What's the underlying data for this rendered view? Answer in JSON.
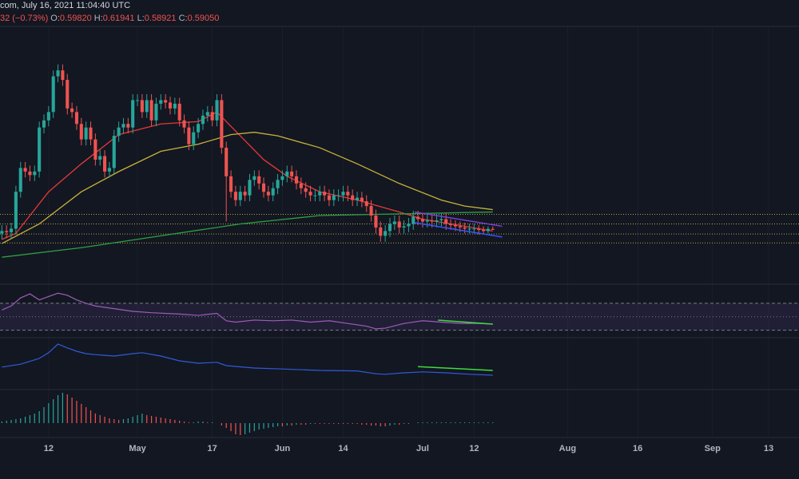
{
  "chart_data": {
    "type": "candlestick",
    "header": {
      "line1": "com, July 16, 2021 11:04:40 UTC",
      "change": "32 (−0.73%)",
      "o_label": "O:",
      "o": "0.59820",
      "h_label": "H:",
      "h": "0.61941",
      "l_label": "L:",
      "l": "0.58921",
      "c_label": "C:",
      "c": "0.59050"
    },
    "up_color": "#26a69a",
    "down_color": "#ef5350",
    "xlim": [
      -0.4,
      170.5
    ],
    "xticks": [
      {
        "value": 10,
        "label": "12"
      },
      {
        "value": 29,
        "label": "May"
      },
      {
        "value": 45,
        "label": "17"
      },
      {
        "value": 60,
        "label": "Jun"
      },
      {
        "value": 73,
        "label": "14"
      },
      {
        "value": 90,
        "label": "Jul"
      },
      {
        "value": 101,
        "label": "12"
      },
      {
        "value": 121,
        "label": "Aug"
      },
      {
        "value": 136,
        "label": "16"
      },
      {
        "value": 152,
        "label": "Sep"
      },
      {
        "value": 164,
        "label": "13"
      }
    ],
    "ylim": [
      0.14,
      2.3
    ],
    "x": [
      0,
      1,
      2,
      3,
      4,
      5,
      6,
      7,
      8,
      9,
      10,
      11,
      12,
      13,
      14,
      15,
      16,
      17,
      18,
      19,
      20,
      21,
      22,
      23,
      24,
      25,
      26,
      27,
      28,
      29,
      30,
      31,
      32,
      33,
      34,
      35,
      36,
      37,
      38,
      39,
      40,
      41,
      42,
      43,
      44,
      45,
      46,
      47,
      48,
      49,
      50,
      51,
      52,
      53,
      54,
      55,
      56,
      57,
      58,
      59,
      60,
      61,
      62,
      63,
      64,
      65,
      66,
      67,
      68,
      69,
      70,
      71,
      72,
      73,
      74,
      75,
      76,
      77,
      78,
      79,
      80,
      81,
      82,
      83,
      84,
      85,
      86,
      87,
      88,
      89,
      90,
      91,
      92,
      93,
      94,
      95,
      96,
      97,
      98,
      99,
      100,
      101,
      102,
      103,
      104,
      105
    ],
    "candles": [
      [
        0.56,
        0.63,
        0.51,
        0.58
      ],
      [
        0.58,
        0.63,
        0.52,
        0.57
      ],
      [
        0.57,
        0.65,
        0.52,
        0.6
      ],
      [
        0.6,
        0.96,
        0.55,
        0.91
      ],
      [
        0.91,
        1.16,
        0.86,
        1.11
      ],
      [
        1.11,
        1.16,
        1.03,
        1.08
      ],
      [
        1.08,
        1.13,
        1.0,
        1.05
      ],
      [
        1.05,
        1.13,
        1.0,
        1.08
      ],
      [
        1.08,
        1.5,
        1.03,
        1.45
      ],
      [
        1.45,
        1.56,
        1.4,
        1.51
      ],
      [
        1.51,
        1.63,
        1.46,
        1.58
      ],
      [
        1.58,
        1.93,
        1.53,
        1.88
      ],
      [
        1.88,
        1.98,
        1.83,
        1.93
      ],
      [
        1.93,
        1.98,
        1.8,
        1.85
      ],
      [
        1.85,
        1.9,
        1.56,
        1.61
      ],
      [
        1.61,
        1.66,
        1.53,
        1.58
      ],
      [
        1.58,
        1.63,
        1.43,
        1.48
      ],
      [
        1.48,
        1.53,
        1.3,
        1.35
      ],
      [
        1.35,
        1.5,
        1.3,
        1.45
      ],
      [
        1.45,
        1.5,
        1.3,
        1.35
      ],
      [
        1.35,
        1.4,
        1.13,
        1.18
      ],
      [
        1.18,
        1.26,
        1.13,
        1.21
      ],
      [
        1.21,
        1.26,
        1.03,
        1.08
      ],
      [
        1.08,
        1.16,
        1.03,
        1.11
      ],
      [
        1.11,
        1.43,
        1.06,
        1.38
      ],
      [
        1.38,
        1.5,
        1.33,
        1.45
      ],
      [
        1.45,
        1.53,
        1.4,
        1.48
      ],
      [
        1.48,
        1.53,
        1.4,
        1.45
      ],
      [
        1.45,
        1.73,
        1.4,
        1.68
      ],
      [
        1.68,
        1.73,
        1.63,
        1.68
      ],
      [
        1.68,
        1.73,
        1.53,
        1.58
      ],
      [
        1.58,
        1.73,
        1.53,
        1.68
      ],
      [
        1.68,
        1.73,
        1.46,
        1.51
      ],
      [
        1.51,
        1.7,
        1.46,
        1.65
      ],
      [
        1.65,
        1.73,
        1.6,
        1.68
      ],
      [
        1.68,
        1.73,
        1.61,
        1.66
      ],
      [
        1.66,
        1.71,
        1.56,
        1.61
      ],
      [
        1.61,
        1.7,
        1.56,
        1.65
      ],
      [
        1.65,
        1.7,
        1.46,
        1.51
      ],
      [
        1.51,
        1.56,
        1.4,
        1.45
      ],
      [
        1.45,
        1.5,
        1.26,
        1.31
      ],
      [
        1.31,
        1.46,
        1.26,
        1.41
      ],
      [
        1.41,
        1.53,
        1.36,
        1.48
      ],
      [
        1.48,
        1.6,
        1.43,
        1.55
      ],
      [
        1.55,
        1.63,
        1.5,
        1.58
      ],
      [
        1.58,
        1.63,
        1.46,
        1.51
      ],
      [
        1.51,
        1.73,
        1.46,
        1.68
      ],
      [
        1.68,
        1.73,
        1.23,
        1.28
      ],
      [
        1.28,
        1.33,
        0.66,
        1.04
      ],
      [
        1.04,
        1.09,
        0.86,
        0.91
      ],
      [
        0.91,
        0.96,
        0.79,
        0.84
      ],
      [
        0.84,
        0.96,
        0.79,
        0.91
      ],
      [
        0.91,
        0.96,
        0.83,
        0.88
      ],
      [
        0.88,
        1.06,
        0.83,
        1.01
      ],
      [
        1.01,
        1.09,
        0.96,
        1.04
      ],
      [
        1.04,
        1.09,
        0.93,
        0.98
      ],
      [
        0.98,
        1.03,
        0.86,
        0.91
      ],
      [
        0.91,
        0.96,
        0.83,
        0.88
      ],
      [
        0.88,
        0.99,
        0.83,
        0.94
      ],
      [
        0.94,
        1.06,
        0.89,
        1.01
      ],
      [
        1.01,
        1.09,
        0.96,
        1.04
      ],
      [
        1.04,
        1.13,
        0.99,
        1.08
      ],
      [
        1.08,
        1.13,
        0.99,
        1.04
      ],
      [
        1.04,
        1.09,
        0.93,
        0.98
      ],
      [
        0.98,
        1.03,
        0.89,
        0.94
      ],
      [
        0.94,
        0.99,
        0.86,
        0.91
      ],
      [
        0.91,
        0.96,
        0.83,
        0.88
      ],
      [
        0.88,
        0.93,
        0.83,
        0.88
      ],
      [
        0.88,
        0.96,
        0.83,
        0.91
      ],
      [
        0.91,
        0.96,
        0.83,
        0.88
      ],
      [
        0.88,
        0.93,
        0.79,
        0.84
      ],
      [
        0.84,
        0.93,
        0.79,
        0.88
      ],
      [
        0.88,
        0.93,
        0.83,
        0.88
      ],
      [
        0.88,
        0.96,
        0.83,
        0.91
      ],
      [
        0.91,
        0.96,
        0.83,
        0.88
      ],
      [
        0.88,
        0.93,
        0.79,
        0.84
      ],
      [
        0.84,
        0.91,
        0.79,
        0.86
      ],
      [
        0.86,
        0.91,
        0.78,
        0.83
      ],
      [
        0.83,
        0.88,
        0.74,
        0.79
      ],
      [
        0.79,
        0.84,
        0.66,
        0.71
      ],
      [
        0.71,
        0.76,
        0.56,
        0.61
      ],
      [
        0.61,
        0.66,
        0.49,
        0.54
      ],
      [
        0.54,
        0.63,
        0.49,
        0.58
      ],
      [
        0.58,
        0.69,
        0.53,
        0.64
      ],
      [
        0.64,
        0.71,
        0.59,
        0.66
      ],
      [
        0.66,
        0.71,
        0.56,
        0.61
      ],
      [
        0.61,
        0.67,
        0.56,
        0.62
      ],
      [
        0.62,
        0.69,
        0.57,
        0.64
      ],
      [
        0.64,
        0.75,
        0.59,
        0.7
      ],
      [
        0.7,
        0.75,
        0.63,
        0.68
      ],
      [
        0.68,
        0.73,
        0.61,
        0.66
      ],
      [
        0.66,
        0.72,
        0.61,
        0.67
      ],
      [
        0.67,
        0.72,
        0.61,
        0.66
      ],
      [
        0.66,
        0.72,
        0.61,
        0.67
      ],
      [
        0.67,
        0.73,
        0.62,
        0.68
      ],
      [
        0.68,
        0.73,
        0.59,
        0.64
      ],
      [
        0.64,
        0.68,
        0.59,
        0.63
      ],
      [
        0.63,
        0.67,
        0.58,
        0.62
      ],
      [
        0.62,
        0.66,
        0.57,
        0.61
      ],
      [
        0.61,
        0.65,
        0.56,
        0.6
      ],
      [
        0.6,
        0.64,
        0.56,
        0.6
      ],
      [
        0.6,
        0.64,
        0.56,
        0.6
      ],
      [
        0.6,
        0.63,
        0.55,
        0.59
      ],
      [
        0.59,
        0.62,
        0.55,
        0.58
      ],
      [
        0.58,
        0.62,
        0.56,
        0.5982
      ],
      [
        0.5982,
        0.61941,
        0.58921,
        0.5905
      ]
    ],
    "series": [
      {
        "color": "#e53935",
        "x": [
          0,
          3,
          10,
          17,
          25,
          34,
          42,
          46,
          51,
          56,
          61,
          68,
          76,
          85,
          90,
          105
        ],
        "values": [
          0.51,
          0.56,
          0.91,
          1.145,
          1.39,
          1.48,
          1.5,
          1.58,
          1.38,
          1.18,
          1.04,
          0.91,
          0.84,
          0.74,
          0.68,
          0.58
        ]
      },
      {
        "color": "#c9b23a",
        "x": [
          0,
          8,
          17,
          25,
          34,
          42,
          49,
          54,
          59,
          68,
          76,
          85,
          94,
          99,
          105
        ],
        "values": [
          0.475,
          0.64,
          0.91,
          1.08,
          1.25,
          1.31,
          1.39,
          1.41,
          1.38,
          1.28,
          1.145,
          0.98,
          0.84,
          0.79,
          0.76
        ]
      },
      {
        "color": "#2ea043",
        "x": [
          0,
          17,
          34,
          51,
          68,
          80,
          105
        ],
        "values": [
          0.36,
          0.44,
          0.54,
          0.64,
          0.71,
          0.72,
          0.74
        ]
      }
    ],
    "levels": [
      0.72,
      0.64,
      0.555,
      0.48
    ],
    "levels_color": "#b5a33f",
    "trendlines": [
      {
        "color": "#7e3fe0",
        "x": [
          88.3,
          107
        ],
        "values": [
          0.74,
          0.62
        ]
      },
      {
        "color": "#3355ff",
        "x": [
          88.3,
          107
        ],
        "values": [
          0.65,
          0.53
        ]
      }
    ],
    "rsi": {
      "ylim": [
        20,
        96
      ],
      "band": [
        30,
        70
      ],
      "mid": 50,
      "color": "#a05bb8",
      "band_color": "#7e57c2",
      "x": [
        0,
        2,
        4,
        6,
        8,
        10,
        12,
        14,
        16,
        18,
        20,
        24,
        28,
        32,
        38,
        42,
        46,
        48,
        50,
        54,
        58,
        62,
        66,
        70,
        74,
        78,
        80,
        82,
        86,
        90,
        94,
        98,
        102,
        105
      ],
      "values": [
        60,
        66,
        78,
        84,
        75,
        80,
        85,
        82,
        75,
        70,
        66,
        62,
        58,
        56,
        54,
        52,
        55,
        44,
        42,
        45,
        44,
        45,
        42,
        44,
        40,
        36,
        32,
        33,
        40,
        44,
        42,
        40,
        40,
        39
      ],
      "divergence": {
        "color": "#3ddc3d",
        "x": [
          93.3,
          105
        ],
        "values": [
          45,
          39
        ]
      }
    },
    "osc": {
      "ylim": [
        0,
        100
      ],
      "color": "#2f5bd8",
      "x": [
        0,
        4,
        8,
        10,
        12,
        14,
        16,
        18,
        20,
        24,
        28,
        30,
        34,
        38,
        42,
        46,
        48,
        54,
        60,
        68,
        76,
        80,
        82,
        86,
        90,
        95,
        100,
        105
      ],
      "values": [
        42,
        48,
        60,
        72,
        90,
        82,
        75,
        70,
        68,
        65,
        70,
        72,
        65,
        55,
        50,
        52,
        45,
        40,
        38,
        35,
        34,
        28,
        27,
        30,
        32,
        30,
        27,
        25
      ],
      "divergence": {
        "color": "#3ddc3d",
        "x": [
          89,
          105
        ],
        "values": [
          43,
          35
        ]
      }
    },
    "histogram": {
      "ylim": [
        -18,
        40
      ],
      "values": [
        2,
        3,
        4,
        5,
        6,
        8,
        10,
        12,
        15,
        20,
        25,
        30,
        35,
        38,
        36,
        32,
        28,
        24,
        20,
        16,
        12,
        10,
        8,
        6,
        5,
        4,
        5,
        6,
        8,
        10,
        12,
        10,
        9,
        8,
        7,
        6,
        5,
        4,
        3,
        2,
        1,
        1,
        2,
        2,
        1,
        1,
        0,
        -3,
        -6,
        -10,
        -14,
        -15,
        -14,
        -12,
        -10,
        -8,
        -7,
        -6,
        -5,
        -4,
        -4,
        -3,
        -3,
        -2,
        -2,
        -2,
        -1,
        -1,
        -1,
        -1,
        -1,
        -1,
        -1,
        -1,
        -1,
        -1,
        -1,
        -2,
        -2,
        -3,
        -3,
        -4,
        -4,
        -3,
        -2,
        -2,
        -1,
        -1,
        0,
        1,
        1,
        1,
        1,
        1,
        1,
        1,
        1,
        1,
        1,
        1,
        1,
        1,
        1,
        1,
        1,
        1
      ]
    }
  }
}
